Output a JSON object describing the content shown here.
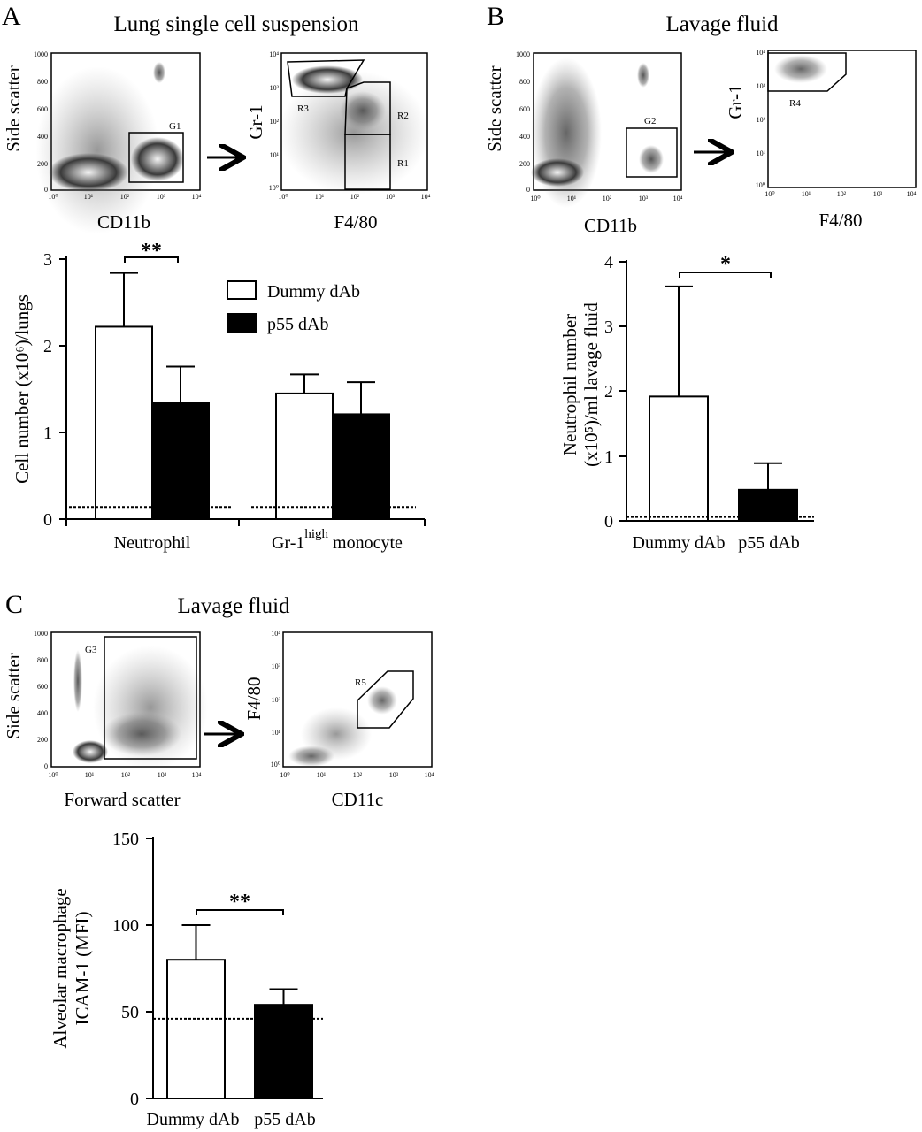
{
  "panels": {
    "A": {
      "letter": "A",
      "title": "Lung single cell suspension",
      "plot1": {
        "ylabel": "Side scatter",
        "xlabel": "CD11b",
        "gate": "G1",
        "yticks": [
          "1000",
          "800",
          "600",
          "400",
          "200",
          "0"
        ]
      },
      "plot2": {
        "ylabel": "Gr-1",
        "xlabel": "F4/80",
        "gates": [
          "R3",
          "R2",
          "R1"
        ]
      },
      "bar": {
        "ylabel": "Cell number (x10⁶)/lungs",
        "yticks": [
          "3",
          "2",
          "1",
          "0"
        ],
        "legend": [
          "Dummy dAb",
          "p55 dAb"
        ],
        "groups": [
          "Neutrophil",
          "Gr-1",
          "high",
          "monocyte"
        ],
        "sig": "**"
      }
    },
    "B": {
      "letter": "B",
      "title": "Lavage fluid",
      "plot1": {
        "ylabel": "Side scatter",
        "xlabel": "CD11b",
        "gate": "G2",
        "yticks": [
          "1000",
          "800",
          "600",
          "400",
          "200",
          "0"
        ]
      },
      "plot2": {
        "ylabel": "Gr-1",
        "xlabel": "F4/80",
        "gate": "R4"
      },
      "bar": {
        "ylabel1": "Neutrophil number",
        "ylabel2": "(x10⁵)/ml lavage fluid",
        "yticks": [
          "4",
          "3",
          "2",
          "1",
          "0"
        ],
        "categories": [
          "Dummy dAb",
          "p55 dAb"
        ],
        "sig": "*"
      }
    },
    "C": {
      "letter": "C",
      "title": "Lavage fluid",
      "plot1": {
        "ylabel": "Side scatter",
        "xlabel": "Forward scatter",
        "gate": "G3",
        "yticks": [
          "1000",
          "800",
          "600",
          "400",
          "200",
          "0"
        ]
      },
      "plot2": {
        "ylabel": "F4/80",
        "xlabel": "CD11c",
        "gate": "R5"
      },
      "bar": {
        "ylabel1": "Alveolar macrophage",
        "ylabel2": "ICAM-1 (MFI)",
        "yticks": [
          "150",
          "100",
          "50",
          "0"
        ],
        "categories": [
          "Dummy dAb",
          "p55 dAb"
        ],
        "sig": "**"
      }
    }
  },
  "log_ticks": [
    "10⁰",
    "10¹",
    "10²",
    "10³",
    "10⁴"
  ],
  "chart_data": [
    {
      "type": "bar",
      "panel": "A",
      "ylabel": "Cell number (x10⁶)/lungs",
      "categories": [
        "Neutrophil",
        "Gr-1high monocyte"
      ],
      "ylim": [
        0,
        3
      ],
      "series": [
        {
          "name": "Dummy dAb",
          "color": "#ffffff",
          "values": [
            2.22,
            1.45
          ],
          "errors": [
            0.62,
            0.22
          ]
        },
        {
          "name": "p55 dAb",
          "color": "#000000",
          "values": [
            1.34,
            1.21
          ],
          "errors": [
            0.42,
            0.37
          ]
        }
      ],
      "baseline": 0.14
    },
    {
      "type": "bar",
      "panel": "B",
      "ylabel": "Neutrophil number (x10⁵)/ml lavage fluid",
      "categories": [
        "Dummy dAb",
        "p55 dAb"
      ],
      "ylim": [
        0,
        4
      ],
      "values": [
        1.92,
        0.48
      ],
      "errors": [
        1.7,
        0.41
      ],
      "colors": [
        "#ffffff",
        "#000000"
      ],
      "baseline": 0.06
    },
    {
      "type": "bar",
      "panel": "C",
      "ylabel": "Alveolar macrophage ICAM-1 (MFI)",
      "categories": [
        "Dummy dAb",
        "p55 dAb"
      ],
      "ylim": [
        0,
        150
      ],
      "values": [
        80,
        54
      ],
      "errors": [
        20,
        9
      ],
      "colors": [
        "#ffffff",
        "#000000"
      ],
      "baseline": 46
    }
  ]
}
